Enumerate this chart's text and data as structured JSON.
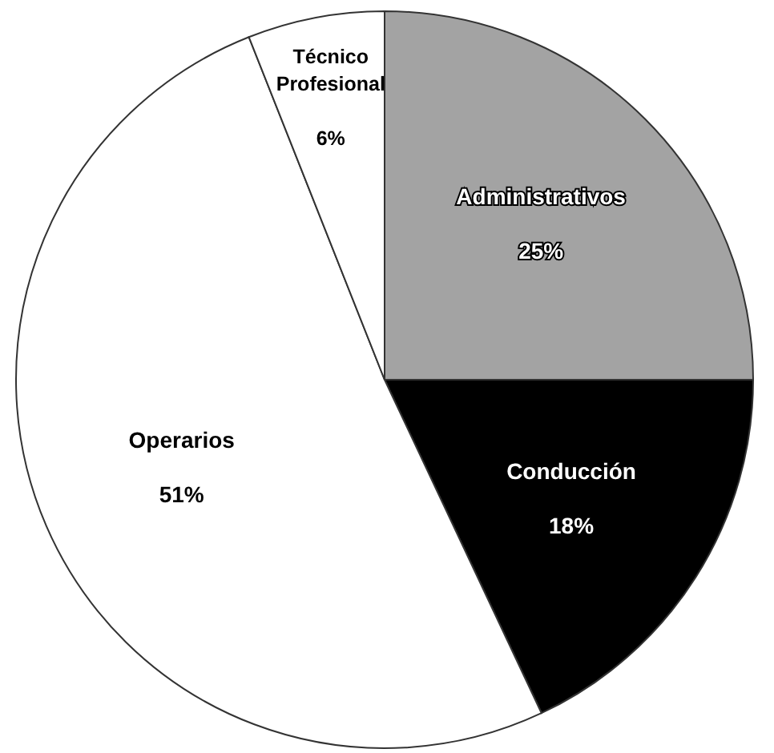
{
  "chart_data": {
    "type": "pie",
    "categories": [
      "Administrativos",
      "Conducción",
      "Operarios",
      "Técnico Profesional"
    ],
    "values": [
      25,
      18,
      51,
      6
    ],
    "value_labels": [
      "25%",
      "18%",
      "51%",
      "6%"
    ],
    "colors": [
      "#a3a3a3",
      "#000000",
      "#ffffff",
      "#ffffff"
    ]
  }
}
